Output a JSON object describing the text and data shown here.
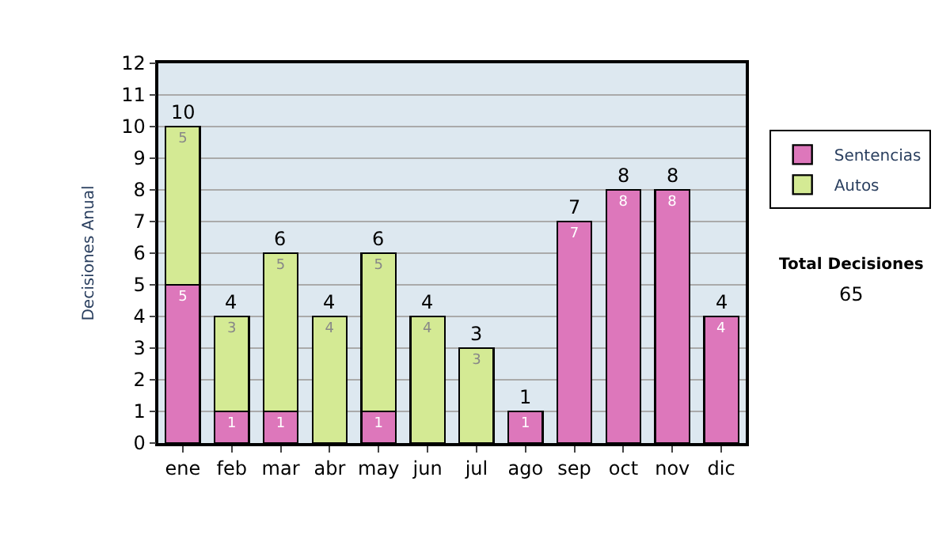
{
  "chart_data": {
    "type": "bar",
    "stacked": true,
    "ylabel": "Decisiones Anual",
    "categories": [
      "ene",
      "feb",
      "mar",
      "abr",
      "may",
      "jun",
      "jul",
      "ago",
      "sep",
      "oct",
      "nov",
      "dic"
    ],
    "series": [
      {
        "name": "Sentencias",
        "color": "#dd77bb",
        "values": [
          5,
          1,
          1,
          null,
          1,
          null,
          null,
          1,
          7,
          8,
          8,
          4
        ],
        "value_labels": [
          "5",
          "1",
          "1",
          null,
          "1",
          null,
          null,
          "1",
          "7",
          "8",
          "8",
          "4"
        ]
      },
      {
        "name": "Autos",
        "color": "#d4ea94",
        "values": [
          5,
          3,
          5,
          4,
          5,
          4,
          3,
          null,
          null,
          null,
          null,
          null
        ],
        "value_labels": [
          "5",
          "3",
          "5",
          "4",
          "5",
          "4",
          "3",
          null,
          null,
          null,
          null,
          null
        ]
      }
    ],
    "totals": [
      "10",
      "4",
      "6",
      "4",
      "6",
      "4",
      "3",
      "1",
      "7",
      "8",
      "8",
      "4"
    ],
    "ylim": [
      0,
      12
    ],
    "yticks": [
      0,
      1,
      2,
      3,
      4,
      5,
      6,
      7,
      8,
      9,
      10,
      11,
      12
    ],
    "grid": "y",
    "legend": "right",
    "annotations": [
      "Total Decisiones",
      "65"
    ]
  }
}
